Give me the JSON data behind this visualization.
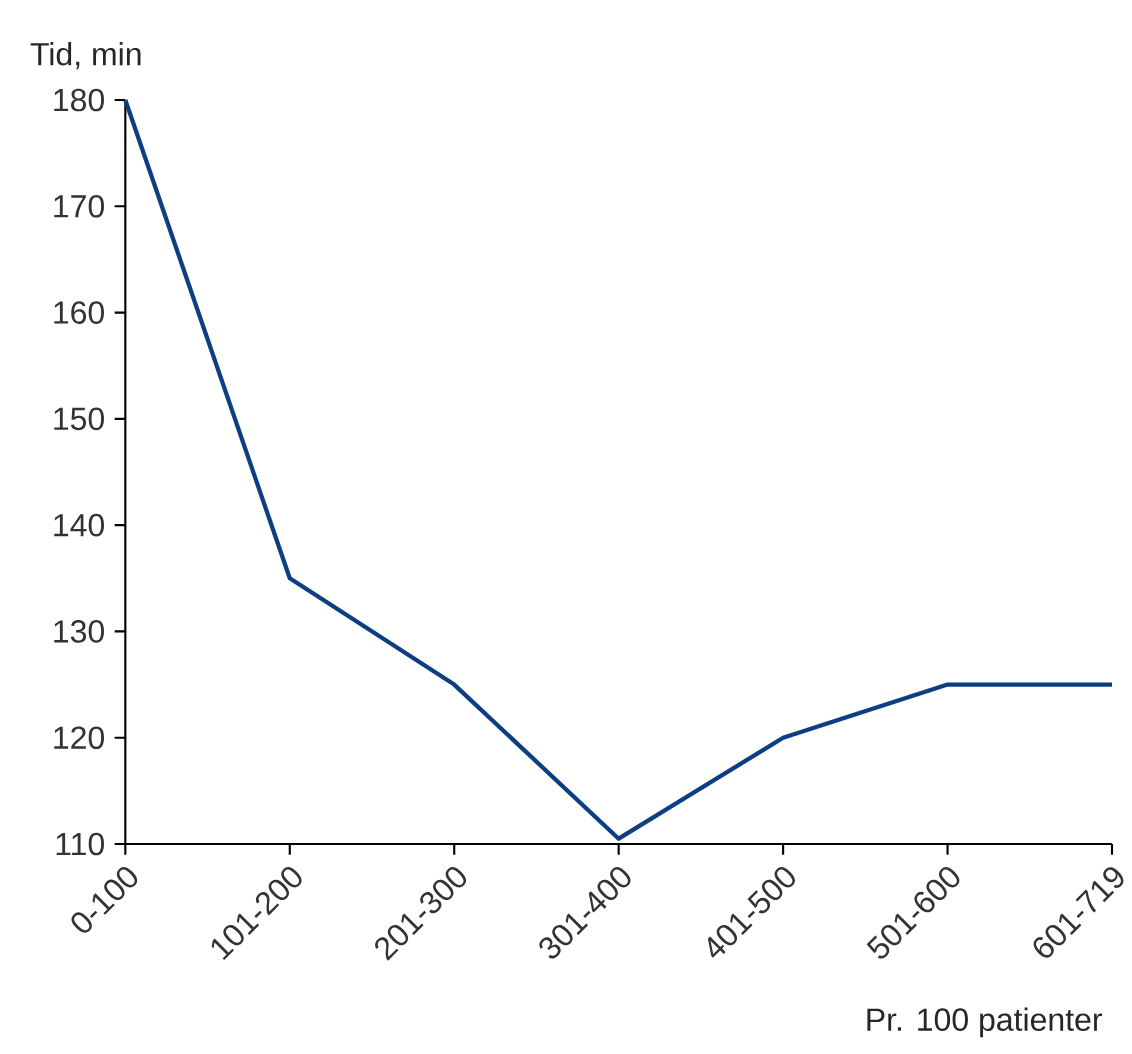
{
  "chart_data": {
    "type": "line",
    "ylabel": "Tid, min",
    "xlabel": "Pr. 100 patienter",
    "categories": [
      "0-100",
      "101-200",
      "201-300",
      "301-400",
      "401-500",
      "501-600",
      "601-719"
    ],
    "series": [
      {
        "color": "#0b3f82",
        "values": [
          180,
          135,
          125,
          110.5,
          120,
          125,
          125
        ]
      }
    ],
    "ylim": [
      110,
      180
    ],
    "yticks": [
      110,
      120,
      130,
      140,
      150,
      160,
      170,
      180
    ]
  }
}
